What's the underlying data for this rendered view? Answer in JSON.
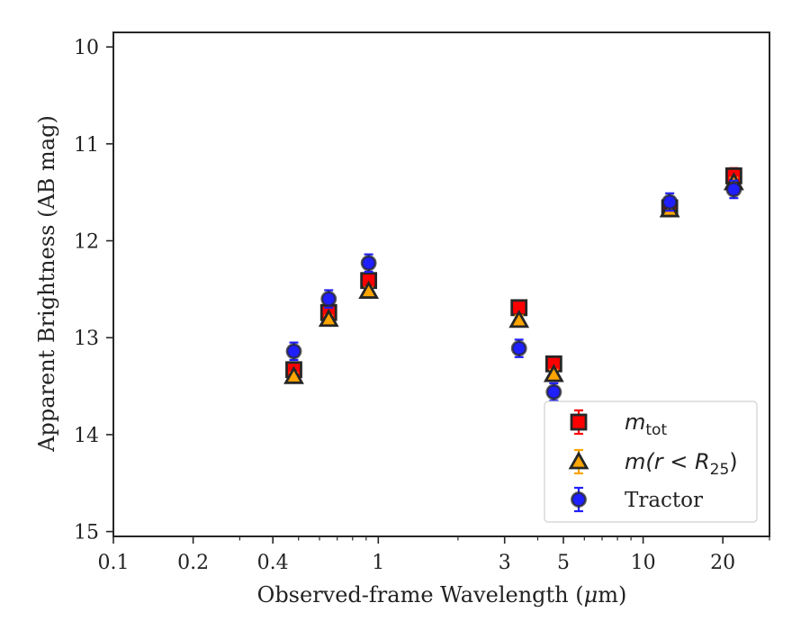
{
  "chart_data": {
    "type": "scatter",
    "xlabel_text": "Observed-frame Wavelength (",
    "xlabel_unit_mu": "μ",
    "xlabel_unit_rest": "m)",
    "ylabel": "Apparent Brightness (AB mag)",
    "x_scale": "log",
    "xlim": [
      0.1,
      30
    ],
    "ylim": [
      15.05,
      9.85
    ],
    "y_inverted": true,
    "grid": false,
    "legend_position": "lower-right",
    "x_ticks": [
      {
        "value": 0.1,
        "label": "0.1"
      },
      {
        "value": 0.2,
        "label": "0.2"
      },
      {
        "value": 0.4,
        "label": "0.4"
      },
      {
        "value": 1,
        "label": "1"
      },
      {
        "value": 3,
        "label": "3"
      },
      {
        "value": 5,
        "label": "5"
      },
      {
        "value": 10,
        "label": "10"
      },
      {
        "value": 20,
        "label": "20"
      }
    ],
    "y_ticks": [
      {
        "value": 10,
        "label": "10"
      },
      {
        "value": 11,
        "label": "11"
      },
      {
        "value": 12,
        "label": "12"
      },
      {
        "value": 13,
        "label": "13"
      },
      {
        "value": 14,
        "label": "14"
      },
      {
        "value": 15,
        "label": "15"
      }
    ],
    "series": [
      {
        "name": "m_tot",
        "legend_main": "m",
        "legend_sub": "tot",
        "marker": "square",
        "color": "#ff0000",
        "errcolor": "#ff0000",
        "points": [
          {
            "x": 0.48,
            "y": 13.33,
            "err": 0.07
          },
          {
            "x": 0.65,
            "y": 12.74,
            "err": 0.07
          },
          {
            "x": 0.92,
            "y": 12.41,
            "err": 0.07
          },
          {
            "x": 3.4,
            "y": 12.69,
            "err": 0.07
          },
          {
            "x": 4.6,
            "y": 13.27,
            "err": 0.07
          },
          {
            "x": 12.6,
            "y": 11.66,
            "err": 0.07
          },
          {
            "x": 22.0,
            "y": 11.33,
            "err": 0.08
          }
        ]
      },
      {
        "name": "m(r<R25)",
        "legend_main": "m(r < R",
        "legend_sub": "25",
        "legend_tail": ")",
        "marker": "triangle",
        "color": "#ffa500",
        "errcolor": "#ffa500",
        "points": [
          {
            "x": 0.48,
            "y": 13.4,
            "err": 0.04
          },
          {
            "x": 0.65,
            "y": 12.81,
            "err": 0.04
          },
          {
            "x": 0.92,
            "y": 12.52,
            "err": 0.04
          },
          {
            "x": 3.4,
            "y": 12.82,
            "err": 0.05
          },
          {
            "x": 4.6,
            "y": 13.38,
            "err": 0.05
          },
          {
            "x": 12.6,
            "y": 11.68,
            "err": 0.05
          },
          {
            "x": 22.0,
            "y": 11.4,
            "err": 0.05
          }
        ]
      },
      {
        "name": "Tractor",
        "legend_main": "Tractor",
        "marker": "circle",
        "color": "#1f1fff",
        "errcolor": "#1f1fff",
        "points": [
          {
            "x": 0.48,
            "y": 13.14,
            "err": 0.09
          },
          {
            "x": 0.65,
            "y": 12.6,
            "err": 0.09
          },
          {
            "x": 0.92,
            "y": 12.23,
            "err": 0.09
          },
          {
            "x": 3.4,
            "y": 13.11,
            "err": 0.09
          },
          {
            "x": 4.6,
            "y": 13.56,
            "err": 0.09
          },
          {
            "x": 12.6,
            "y": 11.6,
            "err": 0.09
          },
          {
            "x": 22.0,
            "y": 11.47,
            "err": 0.09
          }
        ]
      }
    ]
  }
}
